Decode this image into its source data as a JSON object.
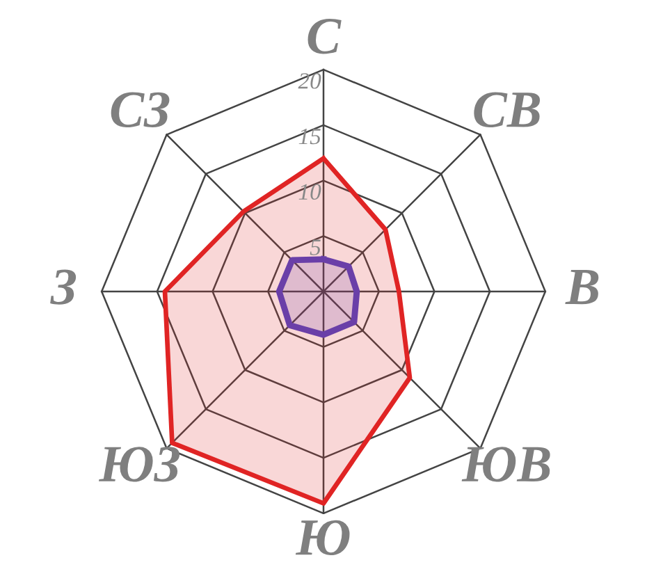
{
  "chart_data": {
    "type": "radar",
    "categories": [
      "С",
      "СВ",
      "В",
      "ЮВ",
      "Ю",
      "ЮЗ",
      "З",
      "СЗ"
    ],
    "ylim": [
      0,
      20
    ],
    "yticks": [
      5,
      10,
      15,
      20
    ],
    "grid": true,
    "marker": "none",
    "line_style": "solid",
    "series": [
      {
        "color": "#e02424",
        "values": [
          12.0,
          7.9,
          6.8,
          11.0,
          19.1,
          19.3,
          14.3,
          10.2
        ]
      },
      {
        "color": "#6a3fa8",
        "values": [
          2.9,
          3.2,
          3.0,
          3.9,
          3.9,
          4.3,
          4.0,
          4.0
        ]
      }
    ]
  }
}
